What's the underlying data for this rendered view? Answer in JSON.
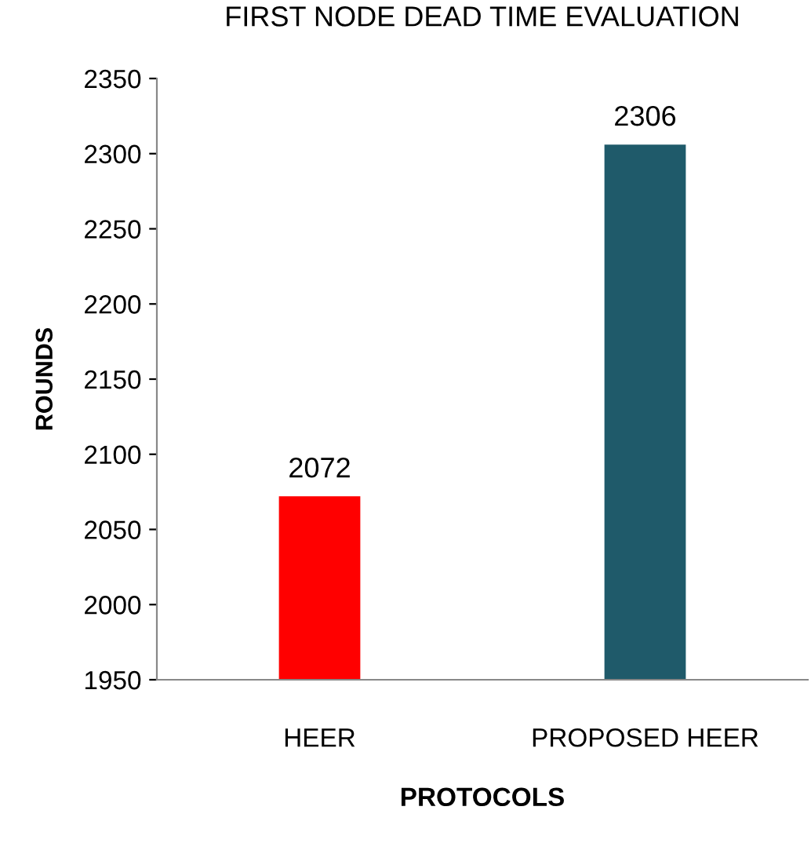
{
  "chart_data": {
    "type": "bar",
    "title": "FIRST NODE DEAD TIME EVALUATION",
    "xlabel": "PROTOCOLS",
    "ylabel": "ROUNDS",
    "categories": [
      "HEER",
      "PROPOSED HEER"
    ],
    "values": [
      2072,
      2306
    ],
    "colors": [
      "#ff0000",
      "#1f5a6a"
    ],
    "ylim": [
      1950,
      2350
    ],
    "yticks": [
      1950,
      2000,
      2050,
      2100,
      2150,
      2200,
      2250,
      2300,
      2350
    ],
    "data_labels": true,
    "grid": false,
    "legend": false
  }
}
